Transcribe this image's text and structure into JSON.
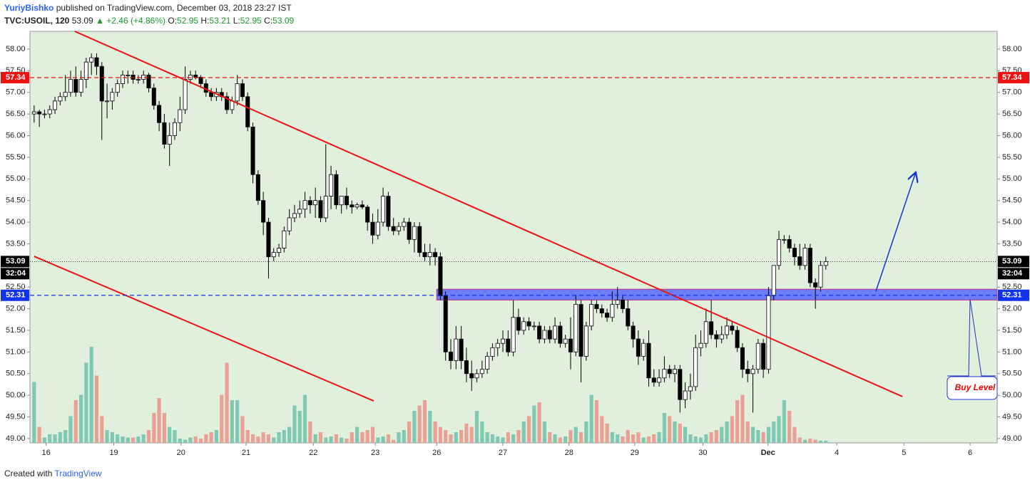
{
  "chart_data": {
    "type": "candlestick",
    "header": {
      "author": "YuriyBishko",
      "published": "published on TradingView.com, December 03, 2018 23:27 IST",
      "symbol": "TVC:USOIL, 120",
      "last": "53.09",
      "change": "▲ +2.46 (+4.86%)",
      "ohlc": [
        [
          "O:",
          "52.95"
        ],
        [
          "H:",
          "53.21"
        ],
        [
          "L:",
          "52.95"
        ],
        [
          "C:",
          "53.09"
        ]
      ]
    },
    "footer": [
      "Created with",
      "TradingView"
    ],
    "up_color": "#ffffff",
    "down_color": "#000000",
    "vol_up_color": "#7fc9b4",
    "vol_down_color": "#eba096",
    "background": "#e0f0dc",
    "candles": [
      [
        56.5,
        56.7,
        56.3,
        56.55
      ],
      [
        56.55,
        56.6,
        56.2,
        56.5
      ],
      [
        56.5,
        56.6,
        56.4,
        56.5
      ],
      [
        56.5,
        56.7,
        56.4,
        56.6
      ],
      [
        56.6,
        56.9,
        56.5,
        56.8
      ],
      [
        56.8,
        57.0,
        56.7,
        56.9
      ],
      [
        56.9,
        57.4,
        56.8,
        57.0
      ],
      [
        57.0,
        57.5,
        56.9,
        57.3
      ],
      [
        57.3,
        57.6,
        56.9,
        57.0
      ],
      [
        57.0,
        57.5,
        56.9,
        57.3
      ],
      [
        57.3,
        57.8,
        57.1,
        57.7
      ],
      [
        57.7,
        57.9,
        57.4,
        57.8
      ],
      [
        57.8,
        57.9,
        57.4,
        57.6
      ],
      [
        57.6,
        57.7,
        55.9,
        56.8
      ],
      [
        56.8,
        57.2,
        56.4,
        56.8
      ],
      [
        56.8,
        57.1,
        56.6,
        57.0
      ],
      [
        57.0,
        57.3,
        56.9,
        57.2
      ],
      [
        57.2,
        57.5,
        57.1,
        57.4
      ],
      [
        57.4,
        57.5,
        57.2,
        57.4
      ],
      [
        57.4,
        57.5,
        57.2,
        57.3
      ],
      [
        57.3,
        57.4,
        57.2,
        57.3
      ],
      [
        57.3,
        57.5,
        57.2,
        57.4
      ],
      [
        57.4,
        57.45,
        57.0,
        57.1
      ],
      [
        57.1,
        57.2,
        56.6,
        56.7
      ],
      [
        56.7,
        56.8,
        56.1,
        56.3
      ],
      [
        56.3,
        56.5,
        55.7,
        55.8
      ],
      [
        55.8,
        56.3,
        55.3,
        56.0
      ],
      [
        56.0,
        56.4,
        55.9,
        56.3
      ],
      [
        56.3,
        56.9,
        56.1,
        56.6
      ],
      [
        56.6,
        57.6,
        56.5,
        57.3
      ],
      [
        57.3,
        57.5,
        57.2,
        57.4
      ],
      [
        57.4,
        57.5,
        57.3,
        57.35
      ],
      [
        57.35,
        57.4,
        57.1,
        57.2
      ],
      [
        57.2,
        57.3,
        56.9,
        57.0
      ],
      [
        57.0,
        57.1,
        56.8,
        56.9
      ],
      [
        56.9,
        57.1,
        56.8,
        57.0
      ],
      [
        57.0,
        57.1,
        56.8,
        56.9
      ],
      [
        56.9,
        57.0,
        56.5,
        56.6
      ],
      [
        56.6,
        56.9,
        56.5,
        56.8
      ],
      [
        56.8,
        57.4,
        56.7,
        57.2
      ],
      [
        57.2,
        57.3,
        56.8,
        56.9
      ],
      [
        56.9,
        57.0,
        56.1,
        56.2
      ],
      [
        56.2,
        56.3,
        54.9,
        55.1
      ],
      [
        55.1,
        55.2,
        54.4,
        54.5
      ],
      [
        54.5,
        54.7,
        53.7,
        54.0
      ],
      [
        54.0,
        54.1,
        52.7,
        53.2
      ],
      [
        53.2,
        53.4,
        53.1,
        53.3
      ],
      [
        53.3,
        53.5,
        53.2,
        53.4
      ],
      [
        53.4,
        53.9,
        53.3,
        53.8
      ],
      [
        53.8,
        54.3,
        53.7,
        54.1
      ],
      [
        54.1,
        54.4,
        54.0,
        54.2
      ],
      [
        54.2,
        54.5,
        54.1,
        54.3
      ],
      [
        54.3,
        54.7,
        54.1,
        54.5
      ],
      [
        54.5,
        54.6,
        54.2,
        54.4
      ],
      [
        54.4,
        54.8,
        54.1,
        54.5
      ],
      [
        54.5,
        54.6,
        54.0,
        54.1
      ],
      [
        54.1,
        55.8,
        54.0,
        54.6
      ],
      [
        54.6,
        55.3,
        54.3,
        55.1
      ],
      [
        55.1,
        55.2,
        54.3,
        54.4
      ],
      [
        54.4,
        54.6,
        54.2,
        54.6
      ],
      [
        54.6,
        54.8,
        54.3,
        54.4
      ],
      [
        54.4,
        54.5,
        54.2,
        54.35
      ],
      [
        54.35,
        54.45,
        54.3,
        54.4
      ],
      [
        54.4,
        54.5,
        54.3,
        54.35
      ],
      [
        54.35,
        54.4,
        53.8,
        54.0
      ],
      [
        54.0,
        54.2,
        53.5,
        53.7
      ],
      [
        53.7,
        54.3,
        53.6,
        54.0
      ],
      [
        54.0,
        54.8,
        53.9,
        54.6
      ],
      [
        54.6,
        54.7,
        53.8,
        53.9
      ],
      [
        53.9,
        54.1,
        53.7,
        53.8
      ],
      [
        53.8,
        54.0,
        53.7,
        53.9
      ],
      [
        53.9,
        54.1,
        53.8,
        54.0
      ],
      [
        54.0,
        54.1,
        53.5,
        53.6
      ],
      [
        53.6,
        54.0,
        53.3,
        53.9
      ],
      [
        53.9,
        54.0,
        53.2,
        53.3
      ],
      [
        53.3,
        53.5,
        53.1,
        53.2
      ],
      [
        53.2,
        53.5,
        53.0,
        53.3
      ],
      [
        53.3,
        53.4,
        53.0,
        53.2
      ],
      [
        53.2,
        53.3,
        52.2,
        52.3
      ],
      [
        52.3,
        52.4,
        50.8,
        51.0
      ],
      [
        51.0,
        51.3,
        50.6,
        50.8
      ],
      [
        50.8,
        51.6,
        50.6,
        51.3
      ],
      [
        51.3,
        51.6,
        50.6,
        50.8
      ],
      [
        50.8,
        51.1,
        50.3,
        50.5
      ],
      [
        50.5,
        50.8,
        50.1,
        50.4
      ],
      [
        50.4,
        50.6,
        50.3,
        50.5
      ],
      [
        50.5,
        50.8,
        50.4,
        50.6
      ],
      [
        50.6,
        51.0,
        50.5,
        50.9
      ],
      [
        50.9,
        51.2,
        50.8,
        51.1
      ],
      [
        51.1,
        51.3,
        50.9,
        51.2
      ],
      [
        51.2,
        51.5,
        51.0,
        51.3
      ],
      [
        51.3,
        51.5,
        50.9,
        51.0
      ],
      [
        51.0,
        52.2,
        50.9,
        51.8
      ],
      [
        51.8,
        52.0,
        51.4,
        51.5
      ],
      [
        51.5,
        51.8,
        51.4,
        51.7
      ],
      [
        51.7,
        51.8,
        51.5,
        51.6
      ],
      [
        51.6,
        51.7,
        51.5,
        51.6
      ],
      [
        51.6,
        51.7,
        51.2,
        51.3
      ],
      [
        51.3,
        51.6,
        51.2,
        51.5
      ],
      [
        51.5,
        51.6,
        51.2,
        51.3
      ],
      [
        51.3,
        51.8,
        51.2,
        51.6
      ],
      [
        51.6,
        51.7,
        51.1,
        51.2
      ],
      [
        51.2,
        51.4,
        51.1,
        51.3
      ],
      [
        51.3,
        51.8,
        50.6,
        51.0
      ],
      [
        51.0,
        52.3,
        50.9,
        52.1
      ],
      [
        52.1,
        52.2,
        50.3,
        50.9
      ],
      [
        50.9,
        51.7,
        50.8,
        51.6
      ],
      [
        51.6,
        52.2,
        51.5,
        52.1
      ],
      [
        52.1,
        52.2,
        51.9,
        52.0
      ],
      [
        52.0,
        52.1,
        51.8,
        51.9
      ],
      [
        51.9,
        52.0,
        51.7,
        51.8
      ],
      [
        51.8,
        52.4,
        51.7,
        52.1
      ],
      [
        52.1,
        52.5,
        52.0,
        52.2
      ],
      [
        52.2,
        52.3,
        51.9,
        52.0
      ],
      [
        52.0,
        52.2,
        51.5,
        51.6
      ],
      [
        51.6,
        51.7,
        51.1,
        51.3
      ],
      [
        51.3,
        51.5,
        50.7,
        50.9
      ],
      [
        50.9,
        51.3,
        50.8,
        51.2
      ],
      [
        51.2,
        51.5,
        50.2,
        50.4
      ],
      [
        50.4,
        50.6,
        50.2,
        50.3
      ],
      [
        50.3,
        50.6,
        50.2,
        50.4
      ],
      [
        50.4,
        50.9,
        50.3,
        50.6
      ],
      [
        50.6,
        50.7,
        50.4,
        50.5
      ],
      [
        50.5,
        50.7,
        50.3,
        50.6
      ],
      [
        50.6,
        50.7,
        49.6,
        49.9
      ],
      [
        49.9,
        50.3,
        49.7,
        50.1
      ],
      [
        50.1,
        50.5,
        49.9,
        50.2
      ],
      [
        50.2,
        51.4,
        50.1,
        51.1
      ],
      [
        51.1,
        51.5,
        50.9,
        51.2
      ],
      [
        51.2,
        52.0,
        51.1,
        51.7
      ],
      [
        51.7,
        52.2,
        51.3,
        51.4
      ],
      [
        51.4,
        51.5,
        51.1,
        51.3
      ],
      [
        51.3,
        51.6,
        51.2,
        51.4
      ],
      [
        51.4,
        51.8,
        51.3,
        51.6
      ],
      [
        51.6,
        51.7,
        51.4,
        51.5
      ],
      [
        51.5,
        51.6,
        51.0,
        51.1
      ],
      [
        51.1,
        51.2,
        50.4,
        50.6
      ],
      [
        50.6,
        50.8,
        50.3,
        50.5
      ],
      [
        50.5,
        50.7,
        49.6,
        50.6
      ],
      [
        50.6,
        51.3,
        50.5,
        51.2
      ],
      [
        51.2,
        51.3,
        50.4,
        50.6
      ],
      [
        50.6,
        52.5,
        50.5,
        52.3
      ],
      [
        52.3,
        53.0,
        52.2,
        53.0
      ],
      [
        53.0,
        53.8,
        52.9,
        53.6
      ],
      [
        53.6,
        53.7,
        53.5,
        53.6
      ],
      [
        53.6,
        53.7,
        53.3,
        53.4
      ],
      [
        53.4,
        53.5,
        53.0,
        53.2
      ],
      [
        53.2,
        53.5,
        52.9,
        53.0
      ],
      [
        53.0,
        53.5,
        52.9,
        53.4
      ],
      [
        53.4,
        53.5,
        52.5,
        52.6
      ],
      [
        52.6,
        52.7,
        52.0,
        52.5
      ],
      [
        52.5,
        53.1,
        52.4,
        53.0
      ],
      [
        53.0,
        53.2,
        52.9,
        53.09
      ]
    ],
    "volume": [
      57,
      15,
      5,
      8,
      8,
      10,
      12,
      25,
      40,
      45,
      75,
      90,
      63,
      25,
      12,
      10,
      8,
      6,
      5,
      5,
      6,
      8,
      12,
      28,
      42,
      28,
      15,
      12,
      4,
      3,
      5,
      6,
      4,
      8,
      10,
      12,
      45,
      75,
      40,
      40,
      25,
      12,
      8,
      6,
      10,
      8,
      5,
      10,
      12,
      15,
      35,
      30,
      45,
      20,
      8,
      10,
      5,
      6,
      8,
      5,
      4,
      10,
      15,
      10,
      12,
      15,
      5,
      6,
      8,
      3,
      10,
      12,
      20,
      30,
      35,
      40,
      30,
      20,
      15,
      12,
      8,
      10,
      12,
      18,
      15,
      30,
      20,
      10,
      8,
      6,
      5,
      10,
      8,
      12,
      20,
      25,
      35,
      38,
      20,
      10,
      8,
      5,
      6,
      12,
      15,
      10,
      20,
      45,
      40,
      25,
      18,
      10,
      8,
      6,
      12,
      8,
      10,
      5,
      6,
      8,
      10,
      28,
      25,
      20,
      18,
      15,
      8,
      6,
      5,
      8,
      10,
      12,
      15,
      20,
      25,
      40,
      45,
      20,
      15,
      12,
      10,
      15,
      20,
      25,
      40,
      30,
      15,
      5,
      3,
      4,
      3,
      2,
      2
    ],
    "vlim": [
      0,
      100
    ],
    "xlim": [
      -0.8,
      184.9
    ],
    "xticks": [
      {
        "value": 2.3,
        "label": "16"
      },
      {
        "value": 15.3,
        "label": "19"
      },
      {
        "value": 28.2,
        "label": "20"
      },
      {
        "value": 40.7,
        "label": "21"
      },
      {
        "value": 53.6,
        "label": "22"
      },
      {
        "value": 65.5,
        "label": "23"
      },
      {
        "value": 77.3,
        "label": "26"
      },
      {
        "value": 90,
        "label": "27"
      },
      {
        "value": 102.7,
        "label": "28"
      },
      {
        "value": 115.3,
        "label": "29"
      },
      {
        "value": 128.4,
        "label": "30"
      },
      {
        "value": 140.9,
        "label": "Dec"
      },
      {
        "value": 154.1,
        "label": "4"
      },
      {
        "value": 167,
        "label": "5"
      },
      {
        "value": 179.7,
        "label": "6"
      }
    ],
    "ylim": [
      48.9,
      58.41
    ],
    "yticks": [
      {
        "value": 49,
        "label": "49.00"
      },
      {
        "value": 49.5,
        "label": "49.50"
      },
      {
        "value": 50,
        "label": "50.00"
      },
      {
        "value": 50.5,
        "label": "50.50"
      },
      {
        "value": 51,
        "label": "51.00"
      },
      {
        "value": 51.5,
        "label": "51.50"
      },
      {
        "value": 52,
        "label": "52.00"
      },
      {
        "value": 52.5,
        "label": "52.50"
      },
      {
        "value": 53,
        "label": "53.00"
      },
      {
        "value": 53.5,
        "label": "53.50"
      },
      {
        "value": 54,
        "label": "54.00"
      },
      {
        "value": 54.5,
        "label": "54.50"
      },
      {
        "value": 55,
        "label": "55.00"
      },
      {
        "value": 55.5,
        "label": "55.50"
      },
      {
        "value": 56,
        "label": "56.00"
      },
      {
        "value": 56.5,
        "label": "56.50"
      },
      {
        "value": 57,
        "label": "57.00"
      },
      {
        "value": 57.5,
        "label": "57.50"
      },
      {
        "value": 58,
        "label": "58.00"
      }
    ],
    "levels": [
      {
        "value": 57.34,
        "color": "#ee1111",
        "dash": "6 4"
      },
      {
        "value": 52.31,
        "color": "#1133ee",
        "dash": "6 4"
      },
      {
        "value": 53.09,
        "color": "#000000",
        "dash": "1 2"
      }
    ],
    "countdown": "32:04",
    "zone": {
      "x": [
        77.3,
        184.9
      ],
      "y": [
        52.2,
        52.45
      ],
      "color": "#4455ff"
    },
    "trendlines": [
      {
        "x": [
          7.8,
          166.7
        ],
        "y": [
          58.41,
          49.97
        ],
        "color": "#ee1111"
      },
      {
        "x": [
          0,
          65.2
        ],
        "y": [
          53.21,
          49.87
        ],
        "color": "#ee1111"
      }
    ],
    "arrow": {
      "x": [
        161.6,
        169.2
      ],
      "y": [
        52.4,
        55.13
      ],
      "color": "#1133cc"
    },
    "annotation": "Buy Level"
  }
}
